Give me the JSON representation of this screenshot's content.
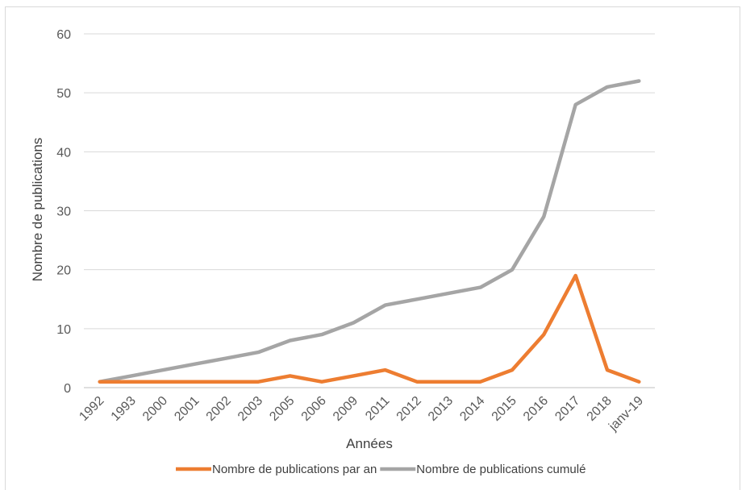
{
  "chart_data": {
    "type": "line",
    "title": "",
    "xlabel": "Années",
    "ylabel": "Nombre de publications",
    "categories": [
      "1992",
      "1993",
      "2000",
      "2001",
      "2002",
      "2003",
      "2005",
      "2006",
      "2009",
      "2011",
      "2012",
      "2013",
      "2014",
      "2015",
      "2016",
      "2017",
      "2018",
      "janv-19"
    ],
    "ylim": [
      0,
      60
    ],
    "yticks": [
      "0",
      "10",
      "20",
      "30",
      "40",
      "50",
      "60"
    ],
    "grid": true,
    "legend_position": "bottom",
    "series": [
      {
        "name": "Nombre de publications par an",
        "color": "#ed7d31",
        "values": [
          1,
          1,
          1,
          1,
          1,
          1,
          2,
          1,
          2,
          3,
          1,
          1,
          1,
          3,
          9,
          19,
          3,
          1
        ]
      },
      {
        "name": "Nombre de publications cumulé",
        "color": "#a5a5a5",
        "values": [
          1,
          2,
          3,
          4,
          5,
          6,
          8,
          9,
          11,
          14,
          15,
          16,
          17,
          20,
          29,
          48,
          51,
          52
        ]
      }
    ]
  }
}
